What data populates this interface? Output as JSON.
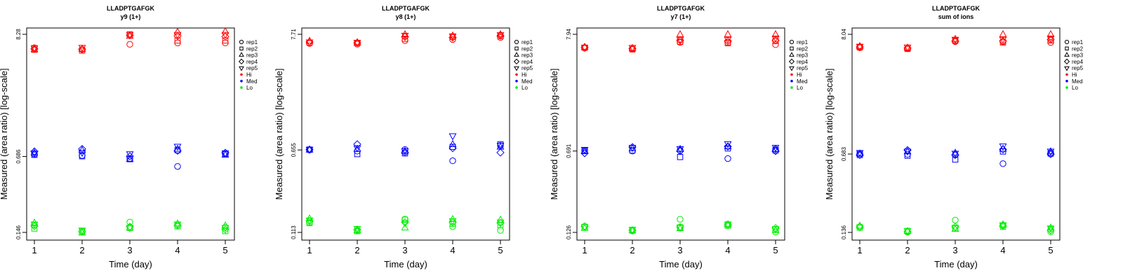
{
  "legend_entries": [
    {
      "label": "rep1",
      "symbol": "circle",
      "color": "#000000"
    },
    {
      "label": "rep2",
      "symbol": "square",
      "color": "#000000"
    },
    {
      "label": "rep3",
      "symbol": "triangle-up",
      "color": "#000000"
    },
    {
      "label": "rep4",
      "symbol": "diamond",
      "color": "#000000"
    },
    {
      "label": "rep5",
      "symbol": "triangle-down",
      "color": "#000000"
    },
    {
      "label": "Hi",
      "symbol": "dot",
      "color": "#ff0000"
    },
    {
      "label": "Med",
      "symbol": "dot",
      "color": "#0000ff"
    },
    {
      "label": "Lo",
      "symbol": "dot",
      "color": "#00ee00"
    }
  ],
  "colors": {
    "Hi": "#ff0000",
    "Med": "#0000ff",
    "Lo": "#00ee00"
  },
  "chart_data": [
    {
      "type": "scatter",
      "title": "LLADPTGAFGK",
      "subtitle": "y9 (1+)",
      "xlabel": "Time (day)",
      "ylabel": "Measured (area ratio) [log-scale]",
      "y_scale": "log",
      "x_ticks": [
        1,
        2,
        3,
        4,
        5
      ],
      "y_tick_labels": [
        "0.146",
        "0.686",
        "8.28"
      ],
      "legend_position": "right",
      "series": [
        {
          "level": "Hi",
          "replicates": [
            {
              "rep": "rep1",
              "values": [
                6.3,
                6.1,
                6.75,
                6.95,
                6.95
              ]
            },
            {
              "rep": "rep2",
              "values": [
                6.05,
                5.95,
                8.28,
                7.3,
                7.3
              ]
            },
            {
              "rep": "rep3",
              "values": [
                6.1,
                6.15,
                8.0,
                8.7,
                8.8
              ]
            },
            {
              "rep": "rep4",
              "values": [
                6.15,
                6.1,
                8.1,
                8.0,
                7.9
              ]
            },
            {
              "rep": "rep5",
              "values": [
                6.25,
                6.3,
                8.15,
                8.2,
                8.2
              ]
            }
          ]
        },
        {
          "level": "Med",
          "replicates": [
            {
              "rep": "rep1",
              "values": [
                0.72,
                0.7,
                0.66,
                0.56,
                0.72
              ]
            },
            {
              "rep": "rep2",
              "values": [
                0.71,
                0.69,
                0.65,
                0.78,
                0.73
              ]
            },
            {
              "rep": "rep3",
              "values": [
                0.74,
                0.78,
                0.65,
                0.8,
                0.71
              ]
            },
            {
              "rep": "rep4",
              "values": [
                0.76,
                0.8,
                0.69,
                0.77,
                0.74
              ]
            },
            {
              "rep": "rep5",
              "values": [
                0.73,
                0.74,
                0.72,
                0.84,
                0.73
              ]
            }
          ]
        },
        {
          "level": "Lo",
          "replicates": [
            {
              "rep": "rep1",
              "values": [
                0.17,
                0.148,
                0.18,
                0.17,
                0.162
              ]
            },
            {
              "rep": "rep2",
              "values": [
                0.158,
                0.15,
                0.16,
                0.165,
                0.15
              ]
            },
            {
              "rep": "rep3",
              "values": [
                0.178,
                0.145,
                0.162,
                0.175,
                0.168
              ]
            },
            {
              "rep": "rep4",
              "values": [
                0.166,
                0.148,
                0.164,
                0.168,
                0.155
              ]
            },
            {
              "rep": "rep5",
              "values": [
                0.172,
                0.152,
                0.16,
                0.172,
                0.16
              ]
            }
          ]
        }
      ]
    },
    {
      "type": "scatter",
      "title": "LLADPTGAFGK",
      "subtitle": "y8 (1+)",
      "xlabel": "Time (day)",
      "ylabel": "Measured (area ratio) [log-scale]",
      "y_scale": "log",
      "x_ticks": [
        1,
        2,
        3,
        4,
        5
      ],
      "y_tick_labels": [
        "0.113",
        "0.655",
        "7.71"
      ],
      "legend_position": "right",
      "series": [
        {
          "level": "Hi",
          "replicates": [
            {
              "rep": "rep1",
              "values": [
                6.35,
                6.25,
                6.75,
                6.9,
                7.2
              ]
            },
            {
              "rep": "rep2",
              "values": [
                6.45,
                6.4,
                7.0,
                7.3,
                7.4
              ]
            },
            {
              "rep": "rep3",
              "values": [
                6.7,
                6.5,
                7.7,
                7.5,
                7.71
              ]
            },
            {
              "rep": "rep4",
              "values": [
                6.55,
                6.45,
                7.3,
                7.2,
                7.5
              ]
            },
            {
              "rep": "rep5",
              "values": [
                6.5,
                6.45,
                7.5,
                7.4,
                7.6
              ]
            }
          ]
        },
        {
          "level": "Med",
          "replicates": [
            {
              "rep": "rep1",
              "values": [
                0.655,
                0.64,
                0.66,
                0.52,
                0.72
              ]
            },
            {
              "rep": "rep2",
              "values": [
                0.66,
                0.6,
                0.61,
                0.7,
                0.74
              ]
            },
            {
              "rep": "rep3",
              "values": [
                0.66,
                0.67,
                0.64,
                0.74,
                0.7
              ]
            },
            {
              "rep": "rep4",
              "values": [
                0.66,
                0.74,
                0.62,
                0.68,
                0.62
              ]
            },
            {
              "rep": "rep5",
              "values": [
                0.66,
                0.68,
                0.64,
                0.88,
                0.72
              ]
            }
          ]
        },
        {
          "level": "Lo",
          "replicates": [
            {
              "rep": "rep1",
              "values": [
                0.14,
                0.118,
                0.15,
                0.128,
                0.118
              ]
            },
            {
              "rep": "rep2",
              "values": [
                0.138,
                0.116,
                0.148,
                0.136,
                0.132
              ]
            },
            {
              "rep": "rep3",
              "values": [
                0.152,
                0.118,
                0.125,
                0.15,
                0.148
              ]
            },
            {
              "rep": "rep4",
              "values": [
                0.144,
                0.12,
                0.14,
                0.14,
                0.138
              ]
            },
            {
              "rep": "rep5",
              "values": [
                0.146,
                0.122,
                0.138,
                0.144,
                0.14
              ]
            }
          ]
        }
      ]
    },
    {
      "type": "scatter",
      "title": "LLADPTGAFGK",
      "subtitle": "y7 (1+)",
      "xlabel": "Time (day)",
      "ylabel": "Measured (area ratio) [log-scale]",
      "y_scale": "log",
      "x_ticks": [
        1,
        2,
        3,
        4,
        5
      ],
      "y_tick_labels": [
        "0.126",
        "0.691",
        "7.94"
      ],
      "legend_position": "right",
      "series": [
        {
          "level": "Hi",
          "replicates": [
            {
              "rep": "rep1",
              "values": [
                5.95,
                5.85,
                6.7,
                6.7,
                6.4
              ]
            },
            {
              "rep": "rep2",
              "values": [
                6.0,
                5.8,
                6.8,
                6.6,
                6.9
              ]
            },
            {
              "rep": "rep3",
              "values": [
                6.1,
                5.95,
                7.94,
                7.94,
                7.94
              ]
            },
            {
              "rep": "rep4",
              "values": [
                6.05,
                5.9,
                7.0,
                6.9,
                7.0
              ]
            },
            {
              "rep": "rep5",
              "values": [
                6.0,
                6.0,
                7.1,
                7.1,
                7.3
              ]
            }
          ]
        },
        {
          "level": "Med",
          "replicates": [
            {
              "rep": "rep1",
              "values": [
                0.7,
                0.69,
                0.7,
                0.59,
                0.72
              ]
            },
            {
              "rep": "rep2",
              "values": [
                0.69,
                0.7,
                0.61,
                0.73,
                0.7
              ]
            },
            {
              "rep": "rep3",
              "values": [
                0.69,
                0.73,
                0.72,
                0.76,
                0.72
              ]
            },
            {
              "rep": "rep4",
              "values": [
                0.66,
                0.75,
                0.69,
                0.76,
                0.69
              ]
            },
            {
              "rep": "rep5",
              "values": [
                0.71,
                0.74,
                0.72,
                0.8,
                0.74
              ]
            }
          ]
        },
        {
          "level": "Lo",
          "replicates": [
            {
              "rep": "rep1",
              "values": [
                0.143,
                0.13,
                0.166,
                0.15,
                0.127
              ]
            },
            {
              "rep": "rep2",
              "values": [
                0.14,
                0.133,
                0.14,
                0.145,
                0.135
              ]
            },
            {
              "rep": "rep3",
              "values": [
                0.138,
                0.131,
                0.137,
                0.148,
                0.132
              ]
            },
            {
              "rep": "rep4",
              "values": [
                0.143,
                0.132,
                0.141,
                0.147,
                0.138
              ]
            },
            {
              "rep": "rep5",
              "values": [
                0.141,
                0.133,
                0.139,
                0.149,
                0.135
              ]
            }
          ]
        }
      ]
    },
    {
      "type": "scatter",
      "title": "LLADPTGAFGK",
      "subtitle": "sum of ions",
      "xlabel": "Time (day)",
      "ylabel": "Measured (area ratio) [log-scale]",
      "y_scale": "log",
      "x_ticks": [
        1,
        2,
        3,
        4,
        5
      ],
      "y_tick_labels": [
        "0.136",
        "0.683",
        "8.04"
      ],
      "legend_position": "right",
      "series": [
        {
          "level": "Hi",
          "replicates": [
            {
              "rep": "rep1",
              "values": [
                6.1,
                6.0,
                6.9,
                6.9,
                6.8
              ]
            },
            {
              "rep": "rep2",
              "values": [
                6.15,
                5.95,
                7.1,
                6.8,
                7.1
              ]
            },
            {
              "rep": "rep3",
              "values": [
                6.3,
                6.1,
                7.3,
                8.04,
                8.04
              ]
            },
            {
              "rep": "rep4",
              "values": [
                6.2,
                6.05,
                7.0,
                7.0,
                7.2
              ]
            },
            {
              "rep": "rep5",
              "values": [
                6.25,
                6.15,
                7.2,
                7.2,
                7.4
              ]
            }
          ]
        },
        {
          "level": "Med",
          "replicates": [
            {
              "rep": "rep1",
              "values": [
                0.69,
                0.68,
                0.67,
                0.56,
                0.7
              ]
            },
            {
              "rep": "rep2",
              "values": [
                0.67,
                0.66,
                0.61,
                0.72,
                0.69
              ]
            },
            {
              "rep": "rep3",
              "values": [
                0.69,
                0.72,
                0.7,
                0.76,
                0.72
              ]
            },
            {
              "rep": "rep4",
              "values": [
                0.67,
                0.74,
                0.67,
                0.75,
                0.68
              ]
            },
            {
              "rep": "rep5",
              "values": [
                0.7,
                0.72,
                0.69,
                0.8,
                0.72
              ]
            }
          ]
        },
        {
          "level": "Lo",
          "replicates": [
            {
              "rep": "rep1",
              "values": [
                0.153,
                0.137,
                0.175,
                0.158,
                0.138
              ]
            },
            {
              "rep": "rep2",
              "values": [
                0.15,
                0.14,
                0.148,
                0.153,
                0.146
              ]
            },
            {
              "rep": "rep3",
              "values": [
                0.156,
                0.14,
                0.146,
                0.16,
                0.15
              ]
            },
            {
              "rep": "rep4",
              "values": [
                0.152,
                0.138,
                0.152,
                0.155,
                0.142
              ]
            },
            {
              "rep": "rep5",
              "values": [
                0.151,
                0.14,
                0.15,
                0.158,
                0.148
              ]
            }
          ]
        }
      ]
    }
  ]
}
